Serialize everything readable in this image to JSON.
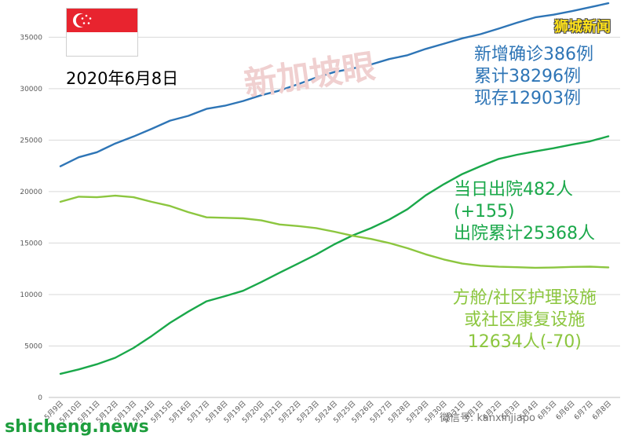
{
  "header": {
    "date_title": "2020年6月8日",
    "brand": "狮城新闻",
    "site": "shicheng.news",
    "wechat": "微信号: kanxinjiapo",
    "watermark": "新加坡眼"
  },
  "annotations": {
    "blue": [
      "新增确诊386例",
      "累计38296例",
      "现存12903例"
    ],
    "green": [
      "当日出院482人",
      "(+155)",
      "出院累计25368人"
    ],
    "lightgreen": [
      "方舱/社区护理设施",
      "或社区康复设施",
      "12634人(-70)"
    ]
  },
  "colors": {
    "cumulative": "#2e75b6",
    "discharged": "#1aa84a",
    "community": "#8cc63f",
    "grid": "#d9d9d9",
    "axis_text": "#595959"
  },
  "chart_data": {
    "type": "line",
    "title": "",
    "xlabel": "",
    "ylabel": "",
    "ylim": [
      0,
      38000
    ],
    "yticks": [
      0,
      5000,
      10000,
      15000,
      20000,
      25000,
      30000,
      35000
    ],
    "grid": true,
    "x": [
      "5月9日",
      "5月10日",
      "5月11日",
      "5月12日",
      "5月13日",
      "5月14日",
      "5月15日",
      "5月16日",
      "5月17日",
      "5月18日",
      "5月19日",
      "5月20日",
      "5月21日",
      "5月22日",
      "5月23日",
      "5月24日",
      "5月25日",
      "5月26日",
      "5月27日",
      "5月28日",
      "5月29日",
      "5月30日",
      "5月31日",
      "6月1日",
      "6月2日",
      "6月3日",
      "6月4日",
      "6月5日",
      "6月6日",
      "6月7日",
      "6月8日"
    ],
    "series": [
      {
        "key": "cumulative",
        "values": [
          22460,
          23336,
          23822,
          24671,
          25346,
          26098,
          26891,
          27356,
          28038,
          28343,
          28794,
          29364,
          29812,
          30426,
          31068,
          31616,
          31960,
          32343,
          32876,
          33249,
          33860,
          34366,
          34884,
          35292,
          35836,
          36405,
          36922,
          37183,
          37527,
          37910,
          38296
        ]
      },
      {
        "key": "discharged",
        "values": [
          2296,
          2721,
          3225,
          3851,
          4809,
          5973,
          7248,
          8342,
          9340,
          9835,
          10365,
          11207,
          12117,
          12995,
          13882,
          14876,
          15738,
          16444,
          17276,
          18294,
          19631,
          20727,
          21699,
          22466,
          23175,
          23582,
          23904,
          24209,
          24559,
          24886,
          25368
        ]
      },
      {
        "key": "community",
        "values": [
          19010,
          19500,
          19450,
          19600,
          19450,
          19000,
          18600,
          18000,
          17500,
          17450,
          17400,
          17200,
          16800,
          16650,
          16450,
          16100,
          15700,
          15400,
          15000,
          14500,
          13900,
          13400,
          13000,
          12800,
          12700,
          12650,
          12600,
          12620,
          12680,
          12704,
          12634
        ]
      }
    ]
  }
}
